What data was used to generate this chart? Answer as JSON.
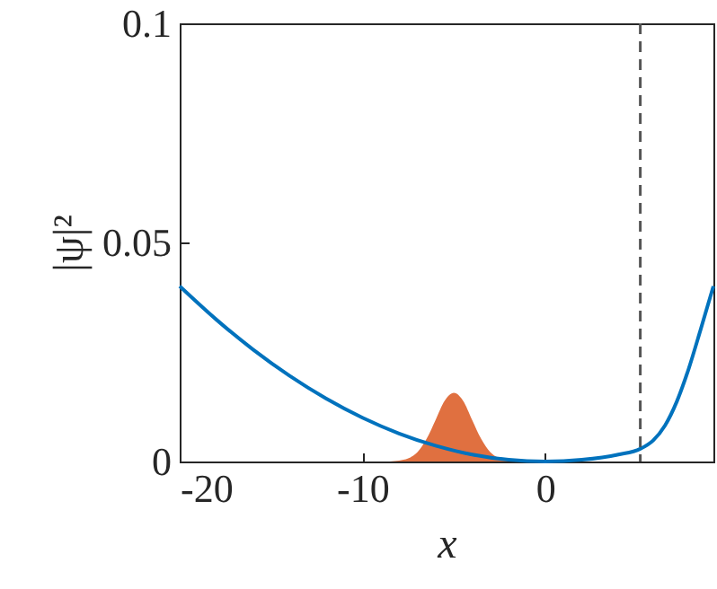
{
  "chart_data": {
    "type": "line",
    "xlabel": "x",
    "ylabel": "|ψ|²",
    "xlim": [
      -20,
      9.2
    ],
    "ylim": [
      0,
      0.1
    ],
    "xticks": [
      -20,
      -10,
      0
    ],
    "yticks": [
      0,
      0.05,
      0.1
    ],
    "grid": false,
    "series": [
      {
        "color": "#0072bd",
        "x": [
          -20,
          -18,
          -16,
          -14,
          -12,
          -10,
          -8,
          -6,
          -4,
          -2,
          0,
          2,
          4,
          5.2,
          5.9,
          6.55,
          7.2,
          7.85,
          8.5,
          9.2
        ],
        "values": [
          0.04,
          0.0324,
          0.0256,
          0.0196,
          0.0144,
          0.01,
          0.0064,
          0.0036,
          0.0016,
          0.0004,
          0,
          0.0004,
          0.0016,
          0.0029,
          0.0048,
          0.0082,
          0.0137,
          0.0212,
          0.0301,
          0.04
        ]
      },
      {
        "type": "area",
        "color": "#e07040",
        "x": [
          -8.5,
          -8,
          -7.5,
          -7,
          -6.5,
          -6,
          -5.5,
          -5,
          -4.5,
          -4,
          -3.5,
          -3,
          -2.5,
          -2,
          -1.5
        ],
        "values": [
          0,
          0.0002,
          0.0007,
          0.0021,
          0.0051,
          0.0095,
          0.0139,
          0.0157,
          0.0139,
          0.0095,
          0.0051,
          0.0021,
          0.0007,
          0.0002,
          0
        ]
      }
    ],
    "ref_lines": [
      {
        "axis": "x",
        "value": 5.2,
        "color": "#555555",
        "line_style": "dashed"
      }
    ]
  }
}
